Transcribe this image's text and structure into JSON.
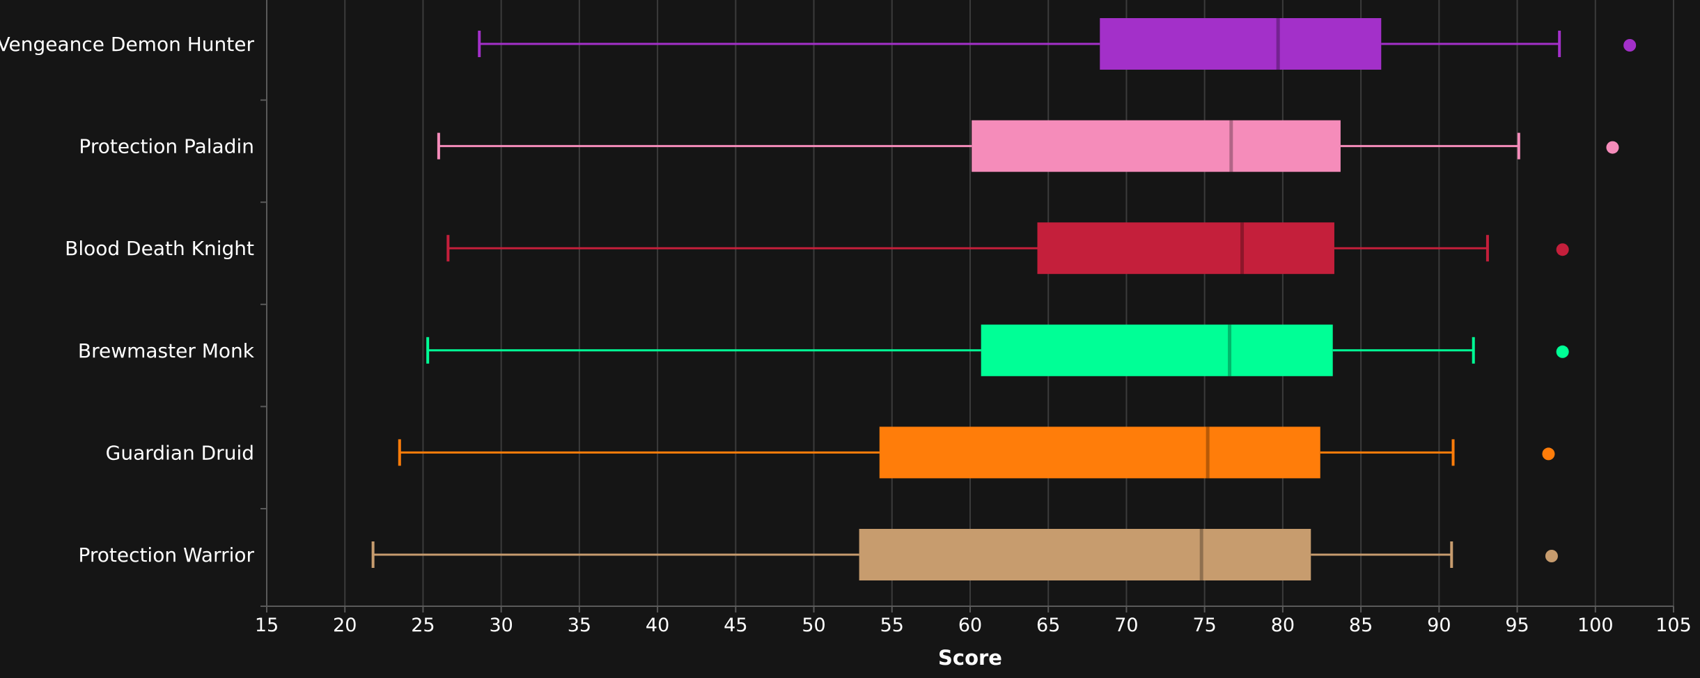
{
  "chart_data": {
    "type": "boxplot",
    "orientation": "horizontal",
    "xlabel": "Score",
    "xlim": [
      15,
      105
    ],
    "xticks": [
      15,
      20,
      25,
      30,
      35,
      40,
      45,
      50,
      55,
      60,
      65,
      70,
      75,
      80,
      85,
      90,
      95,
      100,
      105
    ],
    "grid": true,
    "categories": [
      "Vengeance Demon Hunter",
      "Protection Paladin",
      "Blood Death Knight",
      "Brewmaster Monk",
      "Guardian Druid",
      "Protection Warrior"
    ],
    "series": [
      {
        "category": "Vengeance Demon Hunter",
        "min": 28.6,
        "q1": 68.3,
        "median": 79.7,
        "q3": 86.3,
        "max": 97.7,
        "outliers": [
          102.2
        ],
        "color": "#a330c9"
      },
      {
        "category": "Protection Paladin",
        "min": 26.0,
        "q1": 60.1,
        "median": 76.7,
        "q3": 83.7,
        "max": 95.1,
        "outliers": [
          101.1
        ],
        "color": "#f58cba"
      },
      {
        "category": "Blood Death Knight",
        "min": 26.6,
        "q1": 64.3,
        "median": 77.4,
        "q3": 83.3,
        "max": 93.1,
        "outliers": [
          97.9
        ],
        "color": "#c41f3b"
      },
      {
        "category": "Brewmaster Monk",
        "min": 25.3,
        "q1": 60.7,
        "median": 76.6,
        "q3": 83.2,
        "max": 92.2,
        "outliers": [
          97.9
        ],
        "color": "#00ff96"
      },
      {
        "category": "Guardian Druid",
        "min": 23.5,
        "q1": 54.2,
        "median": 75.2,
        "q3": 82.4,
        "max": 90.9,
        "outliers": [
          97.0
        ],
        "color": "#ff7d0a"
      },
      {
        "category": "Protection Warrior",
        "min": 21.8,
        "q1": 52.9,
        "median": 74.8,
        "q3": 81.8,
        "max": 90.8,
        "outliers": [
          97.2
        ],
        "color": "#c79c6e"
      }
    ]
  }
}
